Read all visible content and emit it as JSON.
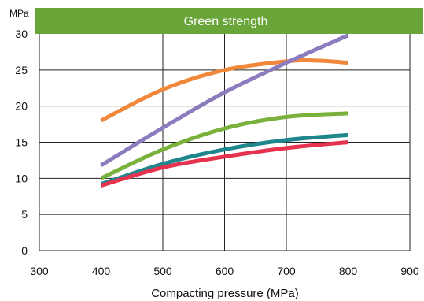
{
  "chart_data": {
    "type": "line",
    "title": "Green strength",
    "ylabel": "MPa",
    "xlabel": "Compacting pressure (MPa)",
    "xlim": [
      300,
      900
    ],
    "ylim": [
      0,
      30
    ],
    "xticks": [
      300,
      400,
      500,
      600,
      700,
      800,
      900
    ],
    "yticks": [
      0,
      5,
      10,
      15,
      20,
      25,
      30
    ],
    "grid": true,
    "legend": "none",
    "title_banner_color": "#6aa53a",
    "series": [
      {
        "color": "#f0873a",
        "x": [
          400,
          500,
          600,
          700,
          750,
          800
        ],
        "y": [
          18,
          22.3,
          25,
          26.2,
          26.3,
          26
        ]
      },
      {
        "color": "#8c7bbd",
        "x": [
          400,
          500,
          600,
          700,
          800
        ],
        "y": [
          11.8,
          17,
          21.9,
          26,
          29.8
        ]
      },
      {
        "color": "#7ab13c",
        "x": [
          400,
          500,
          600,
          700,
          800
        ],
        "y": [
          10,
          14,
          16.9,
          18.5,
          19
        ]
      },
      {
        "color": "#20868d",
        "x": [
          400,
          500,
          600,
          700,
          800
        ],
        "y": [
          9.2,
          12,
          14,
          15.3,
          16
        ]
      },
      {
        "color": "#e4324f",
        "x": [
          400,
          500,
          600,
          700,
          800
        ],
        "y": [
          9,
          11.5,
          13,
          14.2,
          15
        ]
      }
    ]
  }
}
